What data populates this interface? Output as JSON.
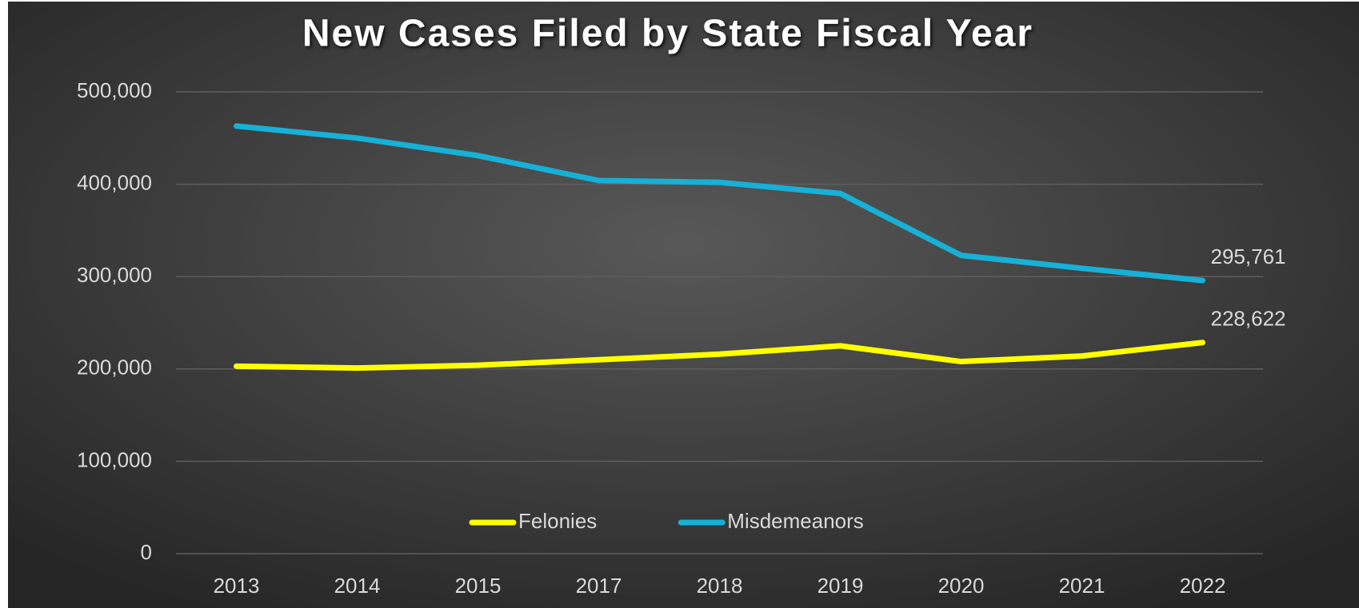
{
  "chart_data": {
    "type": "line",
    "title": "New Cases Filed by State Fiscal Year",
    "categories": [
      "2013",
      "2014",
      "2015",
      "2017",
      "2018",
      "2019",
      "2020",
      "2021",
      "2022"
    ],
    "series": [
      {
        "name": "Felonies",
        "color": "#ffff00",
        "values": [
          203000,
          201000,
          204000,
          210000,
          216000,
          225000,
          208000,
          214000,
          228622
        ],
        "value_labels": [
          null,
          null,
          null,
          null,
          null,
          null,
          null,
          null,
          "228,622"
        ]
      },
      {
        "name": "Misdemeanors",
        "color": "#17b0d6",
        "values": [
          463000,
          450000,
          431000,
          404000,
          402000,
          390000,
          323000,
          309000,
          295761
        ],
        "value_labels": [
          null,
          null,
          null,
          null,
          null,
          null,
          null,
          null,
          "295,761"
        ]
      }
    ],
    "ylim": [
      0,
      500000
    ],
    "yticks": [
      0,
      {
        "value": 100000,
        "label": "100,000"
      },
      {
        "value": 200000,
        "label": "200,000"
      },
      {
        "value": 300000,
        "label": "300,000"
      },
      {
        "value": 400000,
        "label": "400,000"
      },
      {
        "value": 500000,
        "label": "500,000"
      }
    ],
    "grid": true,
    "legend": "bottom"
  }
}
